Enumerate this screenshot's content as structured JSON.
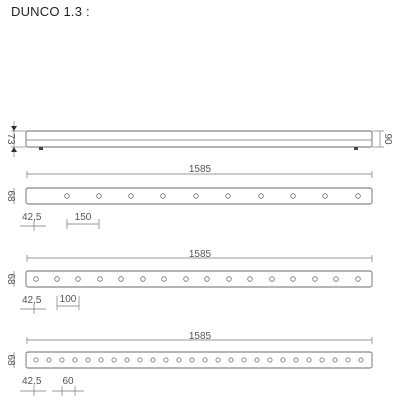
{
  "title": "DUNCO 1.3 :",
  "side_view": {
    "height_label": "73",
    "depth_label": "90"
  },
  "variants": [
    {
      "length_label": "1585",
      "profile_label": "68",
      "offset_label": "42,5",
      "pitch_label": "150",
      "hole_count": 11
    },
    {
      "length_label": "1585",
      "profile_label": "68",
      "offset_label": "42,5",
      "pitch_label": "100",
      "hole_count": 16
    },
    {
      "length_label": "1585",
      "profile_label": "68",
      "offset_label": "42,5",
      "pitch_label": "60",
      "hole_count": 26
    }
  ]
}
